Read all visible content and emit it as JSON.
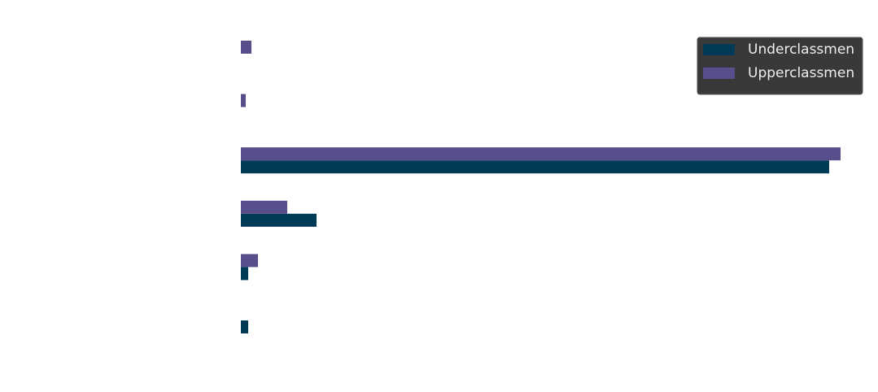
{
  "chart_data": {
    "type": "barh",
    "categories": [
      null,
      null,
      null,
      null,
      null,
      null
    ],
    "series": [
      {
        "name": "Underclassmen",
        "color": "#003a57",
        "values": [
          0,
          0,
          723,
          93,
          9,
          9
        ]
      },
      {
        "name": "Upperclassmen",
        "color": "#574f8c",
        "values": [
          13,
          6,
          737,
          57,
          21,
          0
        ]
      }
    ],
    "xlim": [
      0,
      750
    ],
    "legend": "upper right"
  }
}
